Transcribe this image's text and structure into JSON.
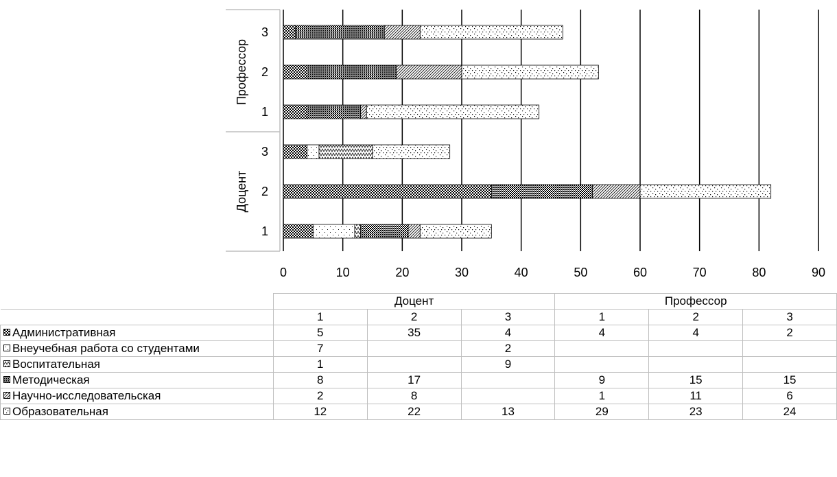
{
  "colors": {
    "axis": "#000000",
    "frame": "#bfbfbf",
    "bar_outline": "#000000"
  },
  "chart_data": {
    "type": "bar",
    "orientation": "horizontal",
    "stacked": true,
    "title": "",
    "xlabel": "",
    "ylabel": "",
    "xlim": [
      0,
      90
    ],
    "ticks": [
      "0",
      "10",
      "20",
      "30",
      "40",
      "50",
      "60",
      "70",
      "80",
      "90"
    ],
    "grid": true,
    "legend": "table-below",
    "groups": [
      {
        "name": "Доцент",
        "categories": [
          "1",
          "2",
          "3"
        ]
      },
      {
        "name": "Профессор",
        "categories": [
          "1",
          "2",
          "3"
        ]
      }
    ],
    "series": [
      {
        "name": "Административная",
        "pattern": "dense-dots",
        "values": [
          5,
          35,
          4,
          4,
          4,
          2
        ]
      },
      {
        "name": "Внеучебная работа со студентами",
        "pattern": "sparse-dots",
        "values": [
          7,
          null,
          2,
          null,
          null,
          null
        ]
      },
      {
        "name": "Воспитательная",
        "pattern": "zigzag",
        "values": [
          1,
          null,
          9,
          null,
          null,
          null
        ]
      },
      {
        "name": "Методическая",
        "pattern": "checker",
        "values": [
          8,
          17,
          null,
          9,
          15,
          15
        ]
      },
      {
        "name": "Научно-исследовательская",
        "pattern": "diagonal",
        "values": [
          2,
          8,
          null,
          1,
          11,
          6
        ]
      },
      {
        "name": "Образовательная",
        "pattern": "confetti",
        "values": [
          12,
          22,
          13,
          29,
          23,
          24
        ]
      }
    ]
  }
}
